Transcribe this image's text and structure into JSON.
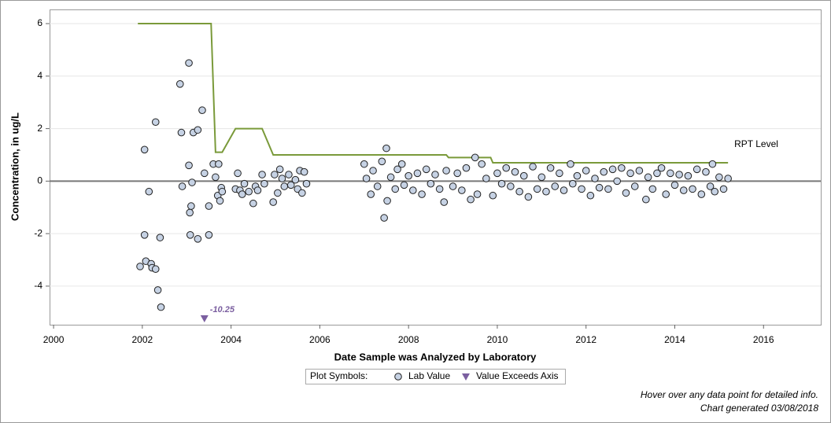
{
  "chart_data": {
    "type": "scatter",
    "xlabel": "Date Sample was Analyzed by Laboratory",
    "ylabel": "Concentration, in ug/L",
    "xlim": [
      1999.91,
      2017.29
    ],
    "ylim": [
      -5.47,
      6.54
    ],
    "xticks": [
      2000,
      2002,
      2004,
      2006,
      2008,
      2010,
      2012,
      2014,
      2016
    ],
    "yticks": [
      -4,
      -2,
      0,
      2,
      4,
      6
    ],
    "grid": true,
    "series": [
      {
        "name": "Lab Value",
        "color": "#c6d2e4",
        "x": [
          2001.95,
          2002.05,
          2002.05,
          2002.08,
          2002.15,
          2002.2,
          2002.22,
          2002.3,
          2002.3,
          2002.35,
          2002.4,
          2002.42,
          2002.85,
          2002.88,
          2002.9,
          2003.05,
          2003.05,
          2003.07,
          2003.08,
          2003.1,
          2003.12,
          2003.15,
          2003.25,
          2003.25,
          2003.35,
          2003.4,
          2003.5,
          2003.5,
          2003.6,
          2003.65,
          2003.7,
          2003.72,
          2003.75,
          2003.78,
          2003.8,
          2004.1,
          2004.15,
          2004.2,
          2004.25,
          2004.3,
          2004.4,
          2004.5,
          2004.55,
          2004.6,
          2004.7,
          2004.75,
          2004.95,
          2004.98,
          2005.05,
          2005.1,
          2005.15,
          2005.2,
          2005.3,
          2005.35,
          2005.45,
          2005.5,
          2005.55,
          2005.6,
          2005.65,
          2005.7,
          2007.0,
          2007.05,
          2007.15,
          2007.2,
          2007.3,
          2007.4,
          2007.45,
          2007.5,
          2007.52,
          2007.6,
          2007.7,
          2007.75,
          2007.85,
          2007.9,
          2008.0,
          2008.1,
          2008.2,
          2008.3,
          2008.4,
          2008.5,
          2008.6,
          2008.7,
          2008.8,
          2008.85,
          2009.0,
          2009.1,
          2009.2,
          2009.3,
          2009.4,
          2009.5,
          2009.55,
          2009.65,
          2009.75,
          2009.9,
          2010.0,
          2010.1,
          2010.2,
          2010.3,
          2010.4,
          2010.5,
          2010.6,
          2010.7,
          2010.8,
          2010.9,
          2011.0,
          2011.1,
          2011.2,
          2011.3,
          2011.4,
          2011.5,
          2011.65,
          2011.7,
          2011.8,
          2011.9,
          2012.0,
          2012.1,
          2012.2,
          2012.3,
          2012.4,
          2012.5,
          2012.6,
          2012.7,
          2012.8,
          2012.9,
          2013.0,
          2013.1,
          2013.2,
          2013.35,
          2013.4,
          2013.5,
          2013.6,
          2013.7,
          2013.8,
          2013.9,
          2014.0,
          2014.1,
          2014.2,
          2014.3,
          2014.4,
          2014.5,
          2014.6,
          2014.7,
          2014.8,
          2014.85,
          2014.9,
          2015.0,
          2015.1,
          2015.2
        ],
        "values": [
          -3.25,
          1.2,
          -2.05,
          -3.05,
          -0.4,
          -3.15,
          -3.3,
          -3.35,
          2.25,
          -4.15,
          -2.15,
          -4.8,
          3.7,
          1.85,
          -0.2,
          4.5,
          0.6,
          -1.2,
          -2.05,
          -0.95,
          -0.05,
          1.85,
          1.95,
          -2.2,
          2.7,
          0.3,
          -0.95,
          -2.05,
          0.65,
          0.15,
          -0.55,
          0.65,
          -0.75,
          -0.25,
          -0.4,
          -0.3,
          0.3,
          -0.35,
          -0.5,
          -0.1,
          -0.4,
          -0.85,
          -0.2,
          -0.35,
          0.25,
          -0.1,
          -0.8,
          0.25,
          -0.45,
          0.45,
          0.1,
          -0.2,
          0.25,
          -0.15,
          0.05,
          -0.3,
          0.4,
          -0.45,
          0.35,
          -0.1,
          0.65,
          0.1,
          -0.5,
          0.4,
          -0.2,
          0.75,
          -1.4,
          1.25,
          -0.75,
          0.15,
          -0.3,
          0.45,
          0.65,
          -0.15,
          0.2,
          -0.35,
          0.3,
          -0.5,
          0.45,
          -0.1,
          0.25,
          -0.3,
          -0.8,
          0.4,
          -0.2,
          0.3,
          -0.35,
          0.5,
          -0.7,
          0.9,
          -0.5,
          0.65,
          0.1,
          -0.55,
          0.3,
          -0.1,
          0.5,
          -0.2,
          0.35,
          -0.4,
          0.2,
          -0.6,
          0.55,
          -0.3,
          0.15,
          -0.4,
          0.5,
          -0.2,
          0.3,
          -0.35,
          0.65,
          -0.1,
          0.2,
          -0.3,
          0.4,
          -0.55,
          0.1,
          -0.25,
          0.35,
          -0.3,
          0.45,
          0.0,
          0.5,
          -0.45,
          0.3,
          -0.2,
          0.4,
          -0.7,
          0.15,
          -0.3,
          0.3,
          0.5,
          -0.5,
          0.3,
          -0.15,
          0.25,
          -0.35,
          0.2,
          -0.3,
          0.45,
          -0.5,
          0.35,
          -0.2,
          0.65,
          -0.4,
          0.15,
          -0.3,
          0.1
        ]
      },
      {
        "name": "Value Exceeds Axis",
        "color": "#7b5fa0",
        "x": [
          2003.4
        ],
        "values": [
          -10.25
        ],
        "value_labels": [
          "-10.25"
        ]
      }
    ],
    "reference_line": {
      "name": "RPT Level",
      "color": "#7a9a3a",
      "x": [
        2001.9,
        2003.55,
        2003.65,
        2003.8,
        2004.1,
        2004.7,
        2004.95,
        2008.85,
        2008.9,
        2009.85,
        2009.9,
        2015.2
      ],
      "values": [
        6,
        6,
        1.1,
        1.1,
        2,
        2,
        1,
        1,
        0.9,
        0.9,
        0.7,
        0.7
      ]
    },
    "legend_title": "Plot Symbols:",
    "footer": [
      "Hover over any data point for detailed info.",
      "Chart generated 03/08/2018"
    ]
  }
}
